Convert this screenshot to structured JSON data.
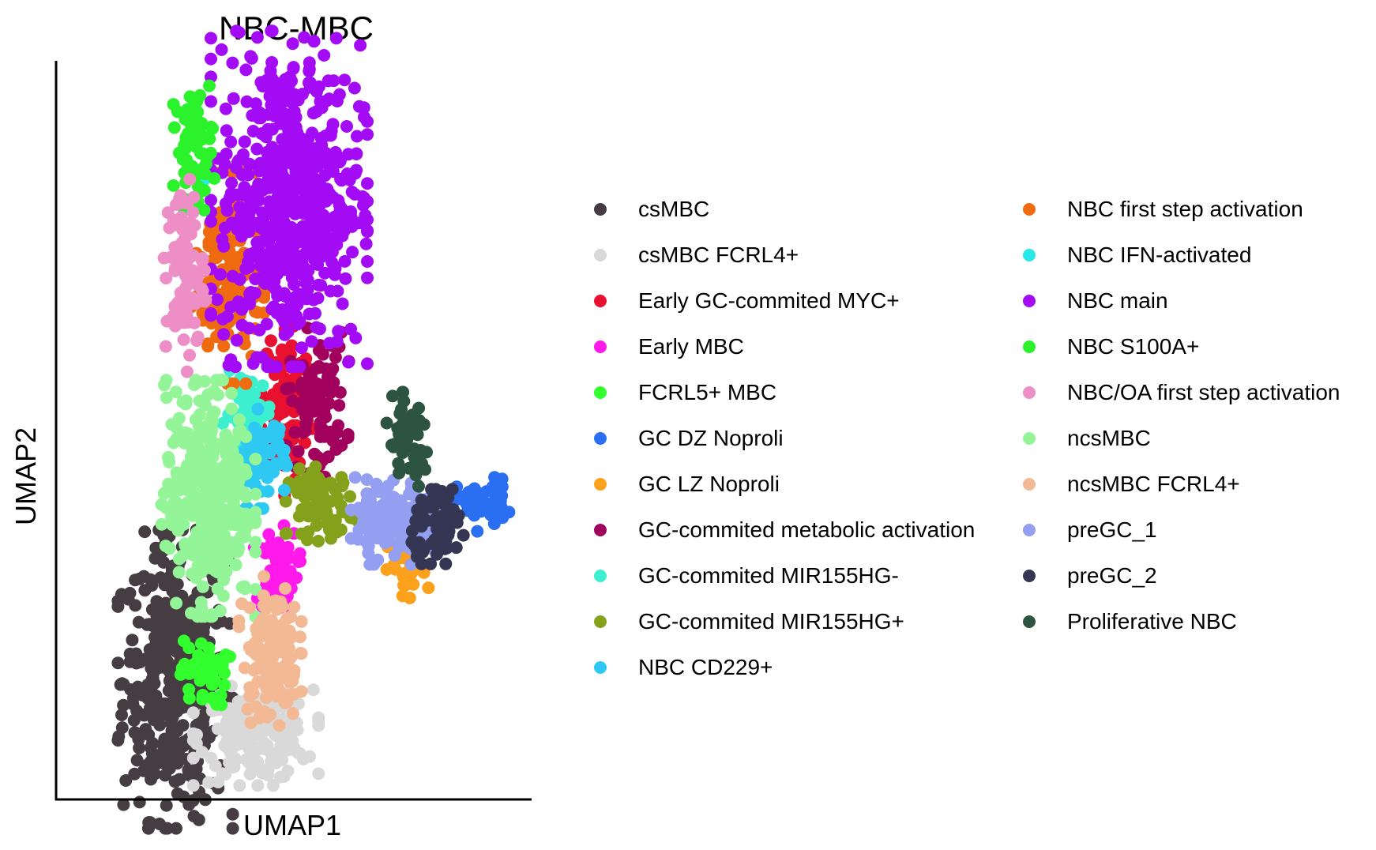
{
  "chart_data": {
    "type": "scatter",
    "title": "NBC-MBC",
    "xlabel": "UMAP1",
    "ylabel": "UMAP2",
    "xticks": "none",
    "yticks": "none",
    "grid": false,
    "legend_position": "right, two columns",
    "series": [
      {
        "name": "csMBC",
        "color": "#463d42",
        "clusters": [
          {
            "x": 2.5,
            "y": 2.1,
            "sx": 0.55,
            "sy": 1.2,
            "n": 420
          }
        ]
      },
      {
        "name": "csMBC FCRL4+",
        "color": "#d9d9d9",
        "clusters": [
          {
            "x": 4.2,
            "y": 1.1,
            "sx": 0.6,
            "sy": 0.4,
            "n": 180
          }
        ]
      },
      {
        "name": "Early GC-commited MYC+",
        "color": "#e8112f",
        "clusters": [
          {
            "x": 4.85,
            "y": 7.0,
            "sx": 0.25,
            "sy": 0.75,
            "n": 110
          }
        ]
      },
      {
        "name": "Early MBC",
        "color": "#ff1aeb",
        "clusters": [
          {
            "x": 4.65,
            "y": 4.05,
            "sx": 0.22,
            "sy": 0.35,
            "n": 60
          }
        ]
      },
      {
        "name": "FCRL5+ MBC",
        "color": "#33ff2e",
        "clusters": [
          {
            "x": 3.1,
            "y": 2.2,
            "sx": 0.25,
            "sy": 0.3,
            "n": 45
          }
        ]
      },
      {
        "name": "GC DZ Noproli",
        "color": "#2a6ef2",
        "clusters": [
          {
            "x": 9.0,
            "y": 5.2,
            "sx": 0.28,
            "sy": 0.22,
            "n": 45
          }
        ]
      },
      {
        "name": "GC LZ Noproli",
        "color": "#fca11c",
        "clusters": [
          {
            "x": 7.4,
            "y": 4.0,
            "sx": 0.2,
            "sy": 0.3,
            "n": 35
          }
        ]
      },
      {
        "name": "GC-commited metabolic activation",
        "color": "#a1005c",
        "clusters": [
          {
            "x": 5.5,
            "y": 7.0,
            "sx": 0.3,
            "sy": 0.6,
            "n": 100
          }
        ]
      },
      {
        "name": "GC-commited MIR155HG-",
        "color": "#3cf0cf",
        "clusters": [
          {
            "x": 4.05,
            "y": 6.8,
            "sx": 0.25,
            "sy": 0.35,
            "n": 60
          }
        ]
      },
      {
        "name": "GC-commited MIR155HG+",
        "color": "#84a11c",
        "clusters": [
          {
            "x": 5.6,
            "y": 5.2,
            "sx": 0.35,
            "sy": 0.3,
            "n": 70
          }
        ]
      },
      {
        "name": "NBC CD229+",
        "color": "#2ec9f2",
        "clusters": [
          {
            "x": 4.3,
            "y": 6.0,
            "sx": 0.25,
            "sy": 0.4,
            "n": 70
          }
        ]
      },
      {
        "name": "NBC first step activation",
        "color": "#f06b0f",
        "clusters": [
          {
            "x": 3.6,
            "y": 9.2,
            "sx": 0.35,
            "sy": 0.85,
            "n": 160
          }
        ]
      },
      {
        "name": "NBC IFN-activated",
        "color": "#29e8e8",
        "clusters": [
          {
            "x": 3.1,
            "y": 11.0,
            "sx": 0.1,
            "sy": 0.1,
            "n": 3
          }
        ]
      },
      {
        "name": "NBC main",
        "color": "#a30bf5",
        "clusters": [
          {
            "x": 4.9,
            "y": 10.6,
            "sx": 0.75,
            "sy": 1.35,
            "n": 600
          }
        ]
      },
      {
        "name": "NBC S100A+",
        "color": "#2bf22b",
        "clusters": [
          {
            "x": 2.9,
            "y": 11.5,
            "sx": 0.2,
            "sy": 0.5,
            "n": 60
          }
        ]
      },
      {
        "name": "NBC/OA first step activation",
        "color": "#ed8fc6",
        "clusters": [
          {
            "x": 2.7,
            "y": 9.3,
            "sx": 0.2,
            "sy": 0.8,
            "n": 90
          }
        ]
      },
      {
        "name": "ncsMBC",
        "color": "#94f598",
        "clusters": [
          {
            "x": 3.2,
            "y": 5.3,
            "sx": 0.45,
            "sy": 0.95,
            "n": 380
          }
        ]
      },
      {
        "name": "ncsMBC FCRL4+",
        "color": "#f2b994",
        "clusters": [
          {
            "x": 4.5,
            "y": 2.6,
            "sx": 0.3,
            "sy": 0.6,
            "n": 130
          }
        ]
      },
      {
        "name": "preGC_1",
        "color": "#959ff2",
        "clusters": [
          {
            "x": 7.2,
            "y": 4.9,
            "sx": 0.45,
            "sy": 0.35,
            "n": 160
          }
        ]
      },
      {
        "name": "preGC_2",
        "color": "#343654",
        "clusters": [
          {
            "x": 8.1,
            "y": 4.8,
            "sx": 0.3,
            "sy": 0.3,
            "n": 70
          }
        ]
      },
      {
        "name": "Proliferative NBC",
        "color": "#2d5440",
        "clusters": [
          {
            "x": 7.4,
            "y": 6.3,
            "sx": 0.25,
            "sy": 0.4,
            "n": 55
          }
        ]
      }
    ],
    "xlim": [
      0,
      10
    ],
    "ylim": [
      0,
      13
    ]
  }
}
